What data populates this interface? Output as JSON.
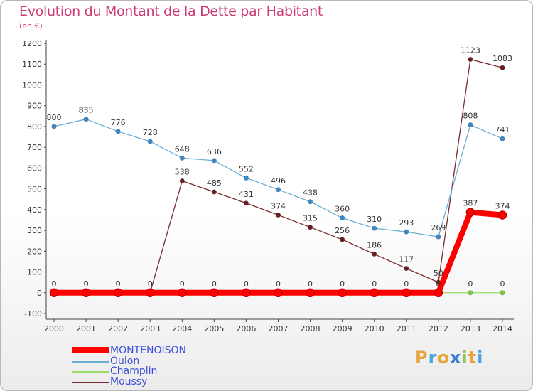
{
  "header": {
    "title": "Evolution du Montant de la Dette par Habitant",
    "subtitle": "(en €)"
  },
  "logo": {
    "text": [
      "P",
      "r",
      "o",
      "x",
      "i",
      "t",
      "i"
    ],
    "colors": [
      "#e8a33a",
      "#4aa3df",
      "#e8a33a",
      "#3b7fd4",
      "#8bc34a",
      "#e8a33a",
      "#4aa3df"
    ]
  },
  "chart_data": {
    "type": "line",
    "title": "Evolution du Montant de la Dette par Habitant",
    "ylabel": "(en €)",
    "xlabel": "",
    "ylim": [
      -100,
      1200
    ],
    "yticks": [
      -100,
      0,
      100,
      200,
      300,
      400,
      500,
      600,
      700,
      800,
      900,
      1000,
      1100,
      1200
    ],
    "ytick_labels": [
      "-100",
      "0",
      "100",
      "200",
      "300",
      "400",
      "500",
      "600",
      "700",
      "800",
      "900",
      "1000",
      "1100",
      "1200"
    ],
    "categories": [
      "2000",
      "2001",
      "2002",
      "2003",
      "2004",
      "2005",
      "2006",
      "2007",
      "2008",
      "2009",
      "2010",
      "2011",
      "2012",
      "2013",
      "2014"
    ],
    "grid": false,
    "legend_position": "bottom-left",
    "series": [
      {
        "name": "MONTENOISON",
        "color": "#ff0000",
        "marker_fill": "#ff0000",
        "values": [
          0,
          0,
          0,
          0,
          0,
          0,
          0,
          0,
          0,
          0,
          0,
          0,
          0,
          387,
          374
        ],
        "labels": [
          "",
          "",
          "",
          "",
          "",
          "",
          "",
          "",
          "",
          "",
          "",
          "",
          "",
          "387",
          "374"
        ]
      },
      {
        "name": "Oulon",
        "color": "#6aaed6",
        "marker_fill": "#3b8ac9",
        "values": [
          800,
          835,
          776,
          728,
          648,
          636,
          552,
          496,
          438,
          360,
          310,
          293,
          269,
          808,
          741
        ],
        "labels": [
          "800",
          "835",
          "776",
          "728",
          "648",
          "636",
          "552",
          "496",
          "438",
          "360",
          "310",
          "293",
          "269",
          "808",
          "741"
        ]
      },
      {
        "name": "Champlin",
        "color": "#99dd66",
        "marker_fill": "#7ccc45",
        "values": [
          0,
          0,
          0,
          0,
          0,
          0,
          0,
          0,
          0,
          0,
          0,
          0,
          0,
          0,
          0
        ],
        "labels": [
          "0",
          "0",
          "0",
          "0",
          "0",
          "0",
          "0",
          "0",
          "0",
          "0",
          "0",
          "0",
          "0",
          "0",
          "0"
        ]
      },
      {
        "name": "Moussy",
        "color": "#7a2a2a",
        "marker_fill": "#6b1e1e",
        "values": [
          0,
          0,
          0,
          0,
          538,
          485,
          431,
          374,
          315,
          256,
          186,
          117,
          50,
          1123,
          1083
        ],
        "labels": [
          "0",
          "0",
          "0",
          "0",
          "538",
          "485",
          "431",
          "374",
          "315",
          "256",
          "186",
          "117",
          "50",
          "1123",
          "1083"
        ]
      }
    ]
  }
}
